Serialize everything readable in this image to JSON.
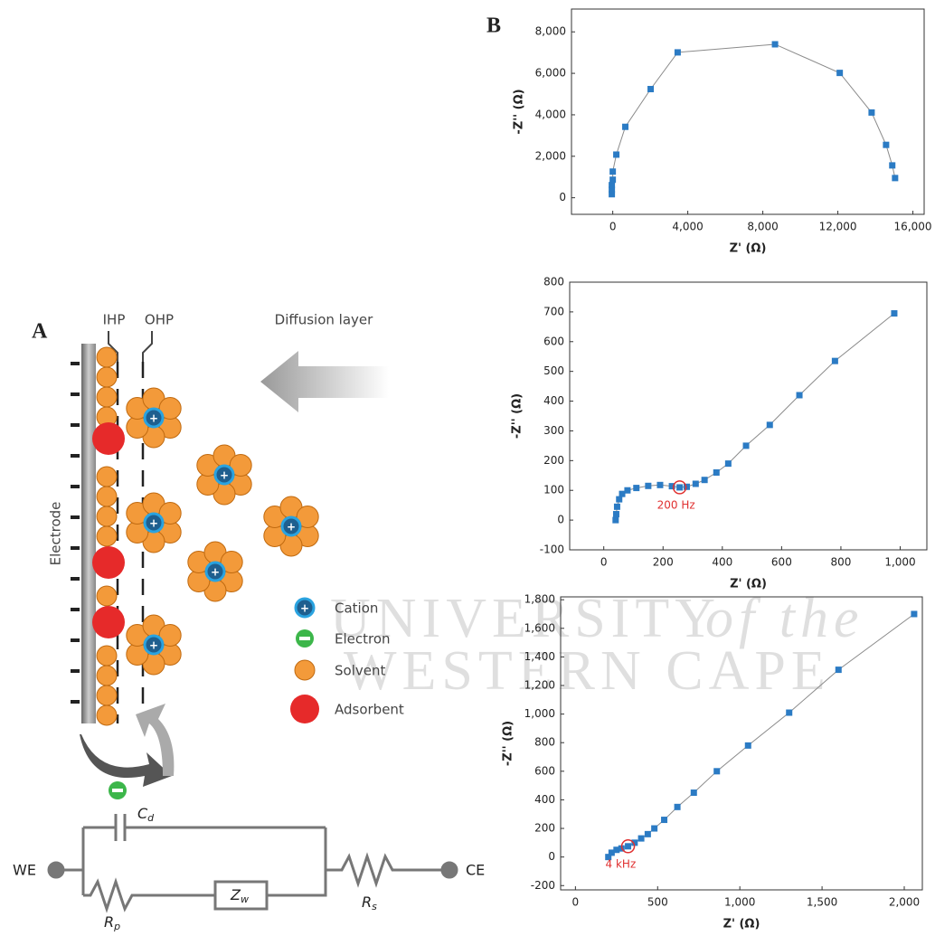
{
  "panel_labels": [
    "A",
    "B"
  ],
  "diagram": {
    "ihp": "IHP",
    "ohp": "OHP",
    "diffusion": "Diffusion layer",
    "electrode": "Electrode",
    "legend": [
      "Cation",
      "Electron",
      "Solvent",
      "Adsorbent"
    ],
    "circuit": {
      "we": "WE",
      "ce": "CE",
      "cd": {
        "main": "C",
        "sub": "d"
      },
      "zw": {
        "main": "Z",
        "sub": "w"
      },
      "rp": {
        "main": "R",
        "sub": "p"
      },
      "rs": {
        "main": "R",
        "sub": "s"
      }
    }
  },
  "watermark": [
    "UNIVERSITY",
    "of the",
    "WESTERN CAPE"
  ],
  "chart_data": [
    {
      "type": "line",
      "xlabel": "Z' (Ω)",
      "ylabel": "-Z'' (Ω)",
      "color": "#2b7bc4",
      "line_color": "#8a8a8a",
      "x": [
        -50,
        -50,
        -50,
        0,
        0,
        190,
        670,
        2020,
        3460,
        8650,
        12100,
        13800,
        14570,
        14900,
        15050
      ],
      "values": [
        170,
        390,
        610,
        870,
        1260,
        2080,
        3420,
        5240,
        7010,
        7400,
        6020,
        4110,
        2550,
        1560,
        950
      ],
      "xlim": [
        -2200,
        16600
      ],
      "ylim": [
        -800,
        9100
      ],
      "xticks": [
        0,
        {
          "value": 4000,
          "label": "4,000"
        },
        {
          "value": 8000,
          "label": "8,000"
        },
        {
          "value": 12000,
          "label": "12,000"
        },
        {
          "value": 16000,
          "label": "16,000"
        }
      ],
      "yticks": [
        0,
        {
          "value": 2000,
          "label": "2,000"
        },
        {
          "value": 4000,
          "label": "4,000"
        },
        {
          "value": 6000,
          "label": "6,000"
        },
        {
          "value": 8000,
          "label": "8,000"
        }
      ]
    },
    {
      "type": "line",
      "xlabel": "Z' (Ω)",
      "ylabel": "-Z'' (Ω)",
      "color": "#2b7bc4",
      "line_color": "#8a8a8a",
      "x": [
        40,
        42,
        45,
        52,
        62,
        80,
        110,
        150,
        190,
        230,
        256,
        280,
        310,
        340,
        380,
        420,
        480,
        560,
        660,
        780,
        980
      ],
      "values": [
        0,
        20,
        45,
        70,
        88,
        100,
        108,
        115,
        118,
        114,
        110,
        112,
        122,
        135,
        160,
        190,
        250,
        320,
        420,
        535,
        695
      ],
      "xlim": [
        -115,
        1090
      ],
      "ylim": [
        -100,
        800
      ],
      "xticks": [
        0,
        200,
        400,
        600,
        800,
        {
          "value": 1000,
          "label": "1,000"
        }
      ],
      "yticks": [
        -100,
        0,
        100,
        200,
        300,
        400,
        500,
        600,
        700,
        800
      ],
      "annotation": {
        "text": "200 Hz",
        "x": 256,
        "y": 110,
        "color": "#e03030"
      }
    },
    {
      "type": "line",
      "xlabel": "Z' (Ω)",
      "ylabel": "-Z'' (Ω)",
      "color": "#2b7bc4",
      "line_color": "#8a8a8a",
      "x": [
        200,
        220,
        250,
        280,
        320,
        360,
        400,
        440,
        480,
        540,
        620,
        720,
        860,
        1050,
        1300,
        1600,
        2060
      ],
      "values": [
        0,
        30,
        50,
        60,
        75,
        100,
        130,
        160,
        200,
        260,
        350,
        450,
        600,
        780,
        1010,
        1310,
        1700
      ],
      "xlim": [
        -90,
        2110
      ],
      "ylim": [
        -230,
        1820
      ],
      "xticks": [
        0,
        500,
        {
          "value": 1000,
          "label": "1,000"
        },
        {
          "value": 1500,
          "label": "1,500"
        },
        {
          "value": 2000,
          "label": "2,000"
        }
      ],
      "yticks": [
        -200,
        0,
        200,
        400,
        600,
        800,
        {
          "value": 1000,
          "label": "1,000"
        },
        {
          "value": 1200,
          "label": "1,200"
        },
        {
          "value": 1400,
          "label": "1,400"
        },
        {
          "value": 1600,
          "label": "1,600"
        },
        {
          "value": 1800,
          "label": "1,800"
        }
      ],
      "annotation": {
        "text": "4 kHz",
        "x": 320,
        "y": 75,
        "color": "#e03030"
      }
    }
  ]
}
